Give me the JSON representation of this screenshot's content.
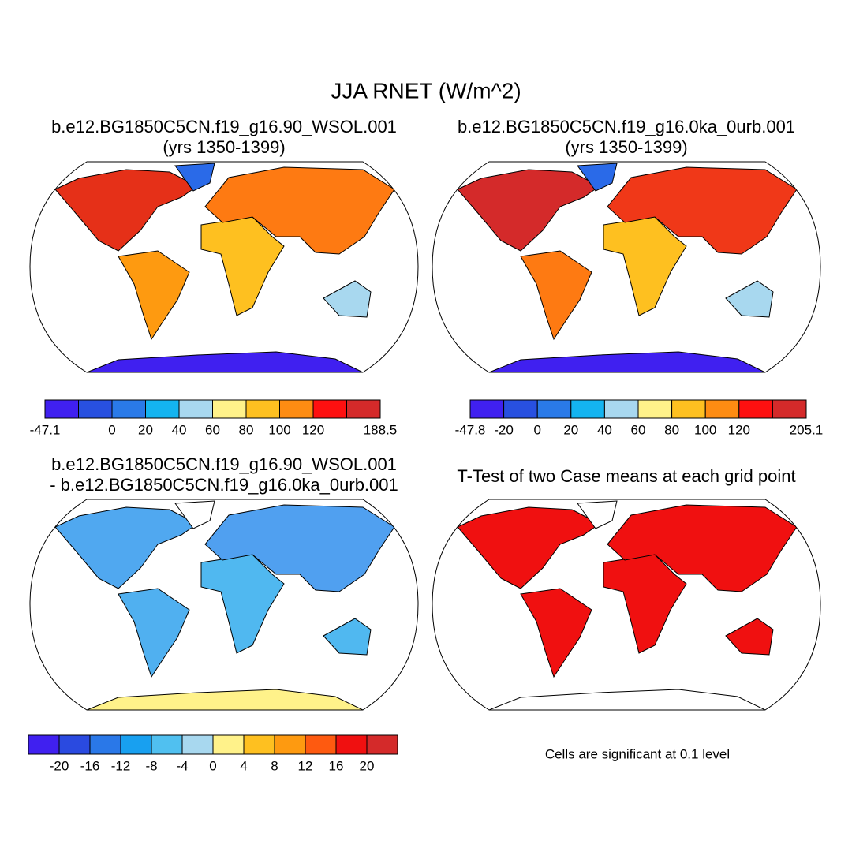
{
  "title": "JJA RNET (W/m^2)",
  "panels": [
    {
      "title": [
        "b.e12.BG1850C5CN.f19_g16.90_WSOL.001",
        "(yrs 1350-1399)"
      ]
    },
    {
      "title": [
        "b.e12.BG1850C5CN.f19_g16.0ka_0urb.001",
        "(yrs 1350-1399)"
      ]
    },
    {
      "title": [
        "b.e12.BG1850C5CN.f19_g16.90_WSOL.001",
        "- b.e12.BG1850C5CN.f19_g16.0ka_0urb.001"
      ]
    },
    {
      "title": [
        "T-Test of two Case means at each grid point"
      ]
    }
  ],
  "colorbars": [
    {
      "colors": [
        "#4020f0",
        "#2850e0",
        "#2a7ae8",
        "#14b4f0",
        "#a8d8ef",
        "#fff28a",
        "#fec020",
        "#fe8c12",
        "#fe1010",
        "#d42a2a"
      ],
      "labels": [
        -47.1,
        null,
        0,
        20,
        40,
        60,
        80,
        100,
        120,
        null,
        188.5
      ]
    },
    {
      "colors": [
        "#4020f0",
        "#2850e0",
        "#2a7ae8",
        "#14b4f0",
        "#a8d8ef",
        "#fff28a",
        "#fec020",
        "#fe8c12",
        "#fe1010",
        "#d42a2a"
      ],
      "labels": [
        -47.8,
        -20,
        0,
        20,
        40,
        60,
        80,
        100,
        120,
        null,
        205.1
      ]
    },
    {
      "colors": [
        "#4020f0",
        "#2a4ae0",
        "#2a78e8",
        "#18a0f0",
        "#50c0f0",
        "#a8d8ef",
        "#fff28a",
        "#fec020",
        "#fe9a10",
        "#fe5a10",
        "#f01010",
        "#d42a2a"
      ],
      "labels": [
        null,
        -20,
        -16,
        -12,
        -8,
        -4,
        0,
        4,
        8,
        12,
        16,
        20,
        null
      ]
    }
  ],
  "note": "Cells are significant at 0.1 level"
}
